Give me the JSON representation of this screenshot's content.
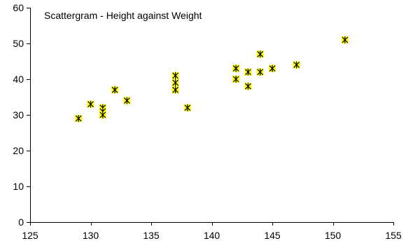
{
  "chart_data": {
    "type": "scatter",
    "title": "Scattergram - Height against Weight",
    "xlabel": "",
    "ylabel": "",
    "xlim": [
      125,
      155
    ],
    "ylim": [
      0,
      60
    ],
    "x_ticks": [
      125,
      130,
      135,
      140,
      145,
      150,
      155
    ],
    "y_ticks": [
      0,
      10,
      20,
      30,
      40,
      50,
      60
    ],
    "grid": false,
    "legend": "none",
    "marker": {
      "shape": "asterisk-in-square",
      "fill_color": "#ffff00",
      "stroke_color": "#000000"
    },
    "points": [
      {
        "x": 129,
        "y": 29
      },
      {
        "x": 130,
        "y": 33
      },
      {
        "x": 131,
        "y": 32
      },
      {
        "x": 131,
        "y": 31
      },
      {
        "x": 131,
        "y": 30
      },
      {
        "x": 132,
        "y": 37
      },
      {
        "x": 133,
        "y": 34
      },
      {
        "x": 137,
        "y": 41
      },
      {
        "x": 137,
        "y": 39
      },
      {
        "x": 137,
        "y": 37
      },
      {
        "x": 138,
        "y": 32
      },
      {
        "x": 142,
        "y": 43
      },
      {
        "x": 142,
        "y": 40
      },
      {
        "x": 143,
        "y": 42
      },
      {
        "x": 143,
        "y": 38
      },
      {
        "x": 144,
        "y": 47
      },
      {
        "x": 144,
        "y": 42
      },
      {
        "x": 145,
        "y": 43
      },
      {
        "x": 147,
        "y": 44
      },
      {
        "x": 151,
        "y": 51
      }
    ]
  }
}
